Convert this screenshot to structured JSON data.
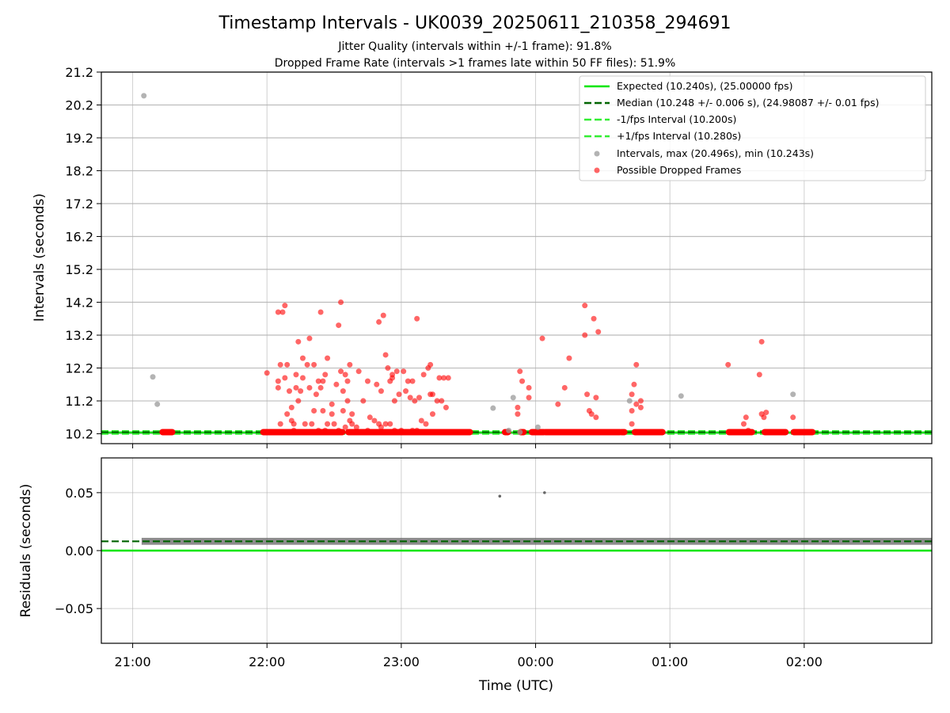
{
  "header": {
    "title": "Timestamp Intervals - UK0039_20250611_210358_294691",
    "subtitle_1": "Jitter Quality (intervals within +/-1 frame): 91.8%",
    "subtitle_2": "Dropped Frame Rate (intervals >1 frames late within 50 FF files): 51.9%"
  },
  "colors": {
    "expected": "#00e600",
    "median": "#006400",
    "fps_band": "#33ee33",
    "intervals": "#999999",
    "dropped": "#ff0000",
    "residuals": "#666666"
  },
  "chart_data": [
    {
      "type": "scatter",
      "ylabel": "Intervals (seconds)",
      "x_range": [
        "20:46",
        "02:57"
      ],
      "ylim": [
        9.9,
        21.2
      ],
      "y_ticks": [
        "10.2",
        "11.2",
        "12.2",
        "13.2",
        "14.2",
        "15.2",
        "16.2",
        "17.2",
        "18.2",
        "19.2",
        "20.2",
        "21.2"
      ],
      "grid": true,
      "legend_position": "top-right",
      "legend": [
        "Expected (10.240s), (25.00000 fps)",
        "Median (10.248 +/- 0.006 s), (24.98087 +/- 0.01 fps)",
        "-1/fps Interval (10.200s)",
        "+1/fps Interval (10.280s)",
        "Intervals, max (20.496s), min (10.243s)",
        "Possible Dropped Frames"
      ],
      "lines": {
        "expected": 10.24,
        "median": 10.248,
        "minus_one_fps": 10.2,
        "plus_one_fps": 10.28
      },
      "dropped_bands": [
        [
          "21:13",
          "21:18"
        ],
        [
          "21:58",
          "22:34"
        ],
        [
          "22:36",
          "23:31"
        ],
        [
          "23:46",
          "23:48"
        ],
        [
          "23:53",
          "23:55"
        ],
        [
          "23:58",
          "00:04"
        ],
        [
          "00:04",
          "00:38"
        ],
        [
          "00:38",
          "00:40"
        ],
        [
          "00:44",
          "00:57"
        ],
        [
          "01:26",
          "01:37"
        ],
        [
          "01:42",
          "01:52"
        ],
        [
          "01:55",
          "02:04"
        ]
      ],
      "intervals_points": [
        [
          "21:05",
          20.48
        ],
        [
          "21:09",
          11.93
        ],
        [
          "21:11",
          11.1
        ],
        [
          "23:41",
          10.98
        ],
        [
          "23:48",
          10.3
        ],
        [
          "23:50",
          11.3
        ],
        [
          "23:53",
          10.25
        ],
        [
          "00:01",
          10.4
        ],
        [
          "00:42",
          11.2
        ],
        [
          "01:05",
          11.35
        ],
        [
          "01:55",
          11.4
        ]
      ],
      "dropped_points": [
        [
          "22:00",
          12.05
        ],
        [
          "22:05",
          13.9
        ],
        [
          "22:05",
          11.6
        ],
        [
          "22:05",
          11.8
        ],
        [
          "22:06",
          12.3
        ],
        [
          "22:06",
          10.5
        ],
        [
          "22:07",
          10.25
        ],
        [
          "22:07",
          13.9
        ],
        [
          "22:08",
          14.1
        ],
        [
          "22:08",
          11.9
        ],
        [
          "22:09",
          10.8
        ],
        [
          "22:09",
          12.3
        ],
        [
          "22:10",
          11.5
        ],
        [
          "22:11",
          11.0
        ],
        [
          "22:11",
          10.6
        ],
        [
          "22:12",
          10.3
        ],
        [
          "22:12",
          10.5
        ],
        [
          "22:13",
          12.0
        ],
        [
          "22:13",
          11.6
        ],
        [
          "22:14",
          11.2
        ],
        [
          "22:14",
          13.0
        ],
        [
          "22:15",
          11.5
        ],
        [
          "22:15",
          10.25
        ],
        [
          "22:16",
          12.5
        ],
        [
          "22:16",
          11.9
        ],
        [
          "22:17",
          10.5
        ],
        [
          "22:18",
          12.3
        ],
        [
          "22:19",
          13.1
        ],
        [
          "22:19",
          11.6
        ],
        [
          "22:20",
          10.5
        ],
        [
          "22:21",
          10.9
        ],
        [
          "22:21",
          12.3
        ],
        [
          "22:22",
          11.4
        ],
        [
          "22:23",
          10.3
        ],
        [
          "22:23",
          11.8
        ],
        [
          "22:24",
          13.9
        ],
        [
          "22:24",
          11.6
        ],
        [
          "22:25",
          10.9
        ],
        [
          "22:25",
          11.8
        ],
        [
          "22:26",
          10.3
        ],
        [
          "22:26",
          12.0
        ],
        [
          "22:27",
          10.5
        ],
        [
          "22:27",
          12.5
        ],
        [
          "22:29",
          10.8
        ],
        [
          "22:29",
          11.1
        ],
        [
          "22:30",
          10.5
        ],
        [
          "22:31",
          11.7
        ],
        [
          "22:32",
          10.3
        ],
        [
          "22:32",
          13.5
        ],
        [
          "22:33",
          12.1
        ],
        [
          "22:33",
          14.2
        ],
        [
          "22:34",
          10.9
        ],
        [
          "22:34",
          11.5
        ],
        [
          "22:35",
          12.0
        ],
        [
          "22:35",
          10.4
        ],
        [
          "22:36",
          11.8
        ],
        [
          "22:36",
          11.2
        ],
        [
          "22:37",
          10.6
        ],
        [
          "22:37",
          12.3
        ],
        [
          "22:38",
          10.8
        ],
        [
          "22:38",
          10.5
        ],
        [
          "22:40",
          10.4
        ],
        [
          "22:41",
          12.1
        ],
        [
          "22:43",
          11.2
        ],
        [
          "22:45",
          10.3
        ],
        [
          "22:45",
          11.8
        ],
        [
          "22:46",
          10.7
        ],
        [
          "22:48",
          10.6
        ],
        [
          "22:49",
          11.7
        ],
        [
          "22:50",
          10.5
        ],
        [
          "22:50",
          13.6
        ],
        [
          "22:51",
          10.4
        ],
        [
          "22:51",
          11.5
        ],
        [
          "22:52",
          13.8
        ],
        [
          "22:53",
          10.5
        ],
        [
          "22:53",
          12.6
        ],
        [
          "22:54",
          12.2
        ],
        [
          "22:55",
          10.5
        ],
        [
          "22:55",
          11.8
        ],
        [
          "22:56",
          11.9
        ],
        [
          "22:56",
          12.0
        ],
        [
          "22:57",
          11.2
        ],
        [
          "22:57",
          10.3
        ],
        [
          "22:58",
          12.1
        ],
        [
          "22:59",
          11.4
        ],
        [
          "23:00",
          10.3
        ],
        [
          "23:01",
          12.1
        ],
        [
          "23:02",
          11.5
        ],
        [
          "23:03",
          11.8
        ],
        [
          "23:04",
          11.3
        ],
        [
          "23:05",
          10.3
        ],
        [
          "23:05",
          11.8
        ],
        [
          "23:06",
          11.2
        ],
        [
          "23:07",
          13.7
        ],
        [
          "23:07",
          10.3
        ],
        [
          "23:08",
          11.3
        ],
        [
          "23:09",
          10.6
        ],
        [
          "23:10",
          12.0
        ],
        [
          "23:11",
          10.5
        ],
        [
          "23:12",
          12.2
        ],
        [
          "23:13",
          11.4
        ],
        [
          "23:13",
          12.3
        ],
        [
          "23:14",
          11.4
        ],
        [
          "23:14",
          10.8
        ],
        [
          "23:16",
          11.2
        ],
        [
          "23:17",
          11.9
        ],
        [
          "23:18",
          11.2
        ],
        [
          "23:19",
          11.9
        ],
        [
          "23:20",
          11.0
        ],
        [
          "23:21",
          11.9
        ],
        [
          "23:52",
          10.8
        ],
        [
          "23:52",
          11.0
        ],
        [
          "23:53",
          12.1
        ],
        [
          "23:54",
          11.8
        ],
        [
          "23:57",
          11.3
        ],
        [
          "23:57",
          11.6
        ],
        [
          "00:03",
          13.1
        ],
        [
          "00:10",
          11.1
        ],
        [
          "00:13",
          11.6
        ],
        [
          "00:15",
          12.5
        ],
        [
          "00:22",
          14.1
        ],
        [
          "00:22",
          13.2
        ],
        [
          "00:23",
          11.4
        ],
        [
          "00:24",
          10.9
        ],
        [
          "00:25",
          10.8
        ],
        [
          "00:26",
          13.7
        ],
        [
          "00:27",
          10.7
        ],
        [
          "00:27",
          11.3
        ],
        [
          "00:28",
          13.3
        ],
        [
          "00:43",
          10.5
        ],
        [
          "00:43",
          10.9
        ],
        [
          "00:43",
          11.4
        ],
        [
          "00:44",
          11.7
        ],
        [
          "00:45",
          12.3
        ],
        [
          "00:45",
          11.1
        ],
        [
          "00:47",
          11.0
        ],
        [
          "00:47",
          11.2
        ],
        [
          "01:26",
          12.3
        ],
        [
          "01:33",
          10.5
        ],
        [
          "01:34",
          10.7
        ],
        [
          "01:35",
          10.3
        ],
        [
          "01:40",
          12.0
        ],
        [
          "01:41",
          13.0
        ],
        [
          "01:41",
          10.8
        ],
        [
          "01:42",
          10.7
        ],
        [
          "01:43",
          10.85
        ],
        [
          "01:55",
          10.7
        ]
      ]
    },
    {
      "type": "scatter",
      "ylabel": "Residuals (seconds)",
      "xlabel": "Time (UTC)",
      "x_ticks": [
        "21:00",
        "22:00",
        "23:00",
        "00:00",
        "01:00",
        "02:00"
      ],
      "ylim": [
        -0.08,
        0.08
      ],
      "y_ticks": [
        "0.05",
        "0.00",
        "−0.05"
      ],
      "grid": true,
      "lines": {
        "expected": 0.0,
        "median": 0.008
      },
      "band_range": [
        "21:04",
        "02:57"
      ],
      "band_center": 0.008,
      "band_halfwidth": 0.003,
      "outliers": [
        [
          "23:44",
          0.047
        ],
        [
          "00:04",
          0.05
        ]
      ]
    }
  ]
}
